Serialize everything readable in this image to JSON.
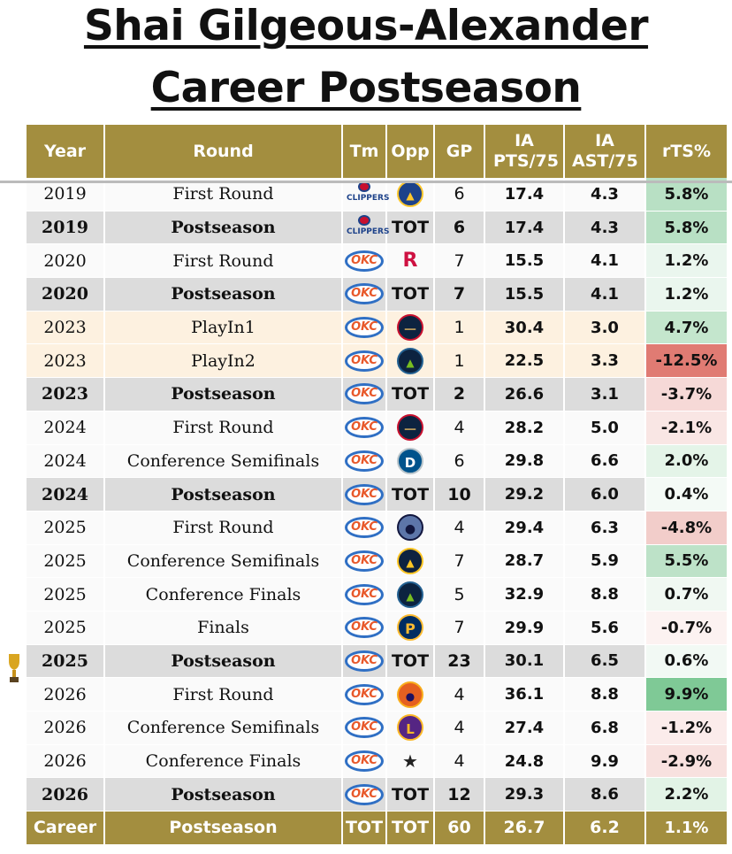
{
  "title": {
    "line1": "Shai Gilgeous-Alexander",
    "line2": "Career Postseason"
  },
  "columns": [
    "Year",
    "Round",
    "Tm",
    "Opp",
    "GP",
    "IA PTS/75",
    "IA AST/75",
    "rTS%"
  ],
  "colors": {
    "header": "#a38e3f",
    "bold_row": "#dcdcdc",
    "playin_row": "#fdf1e0"
  },
  "rows": [
    {
      "year": "2019",
      "round": "First Round",
      "tm": "clippers-logo",
      "opp": "warriors-logo",
      "gp": "6",
      "pts": "17.4",
      "ast": "4.3",
      "rts": "5.8%",
      "rts_color": "#b8e0c4",
      "style": "plain"
    },
    {
      "year": "2019",
      "round": "Postseason",
      "tm": "clippers-logo",
      "opp": "TOT",
      "gp": "6",
      "pts": "17.4",
      "ast": "4.3",
      "rts": "5.8%",
      "rts_color": "#b8e0c4",
      "style": "bold"
    },
    {
      "year": "2020",
      "round": "First Round",
      "tm": "thunder-logo",
      "opp": "rockets-logo",
      "gp": "7",
      "pts": "15.5",
      "ast": "4.1",
      "rts": "1.2%",
      "rts_color": "#eaf6ee",
      "style": "plain"
    },
    {
      "year": "2020",
      "round": "Postseason",
      "tm": "thunder-logo",
      "opp": "TOT",
      "gp": "7",
      "pts": "15.5",
      "ast": "4.1",
      "rts": "1.2%",
      "rts_color": "#eaf6ee",
      "style": "bold"
    },
    {
      "year": "2023",
      "round": "PlayIn1",
      "tm": "thunder-logo",
      "opp": "pelicans-logo",
      "gp": "1",
      "pts": "30.4",
      "ast": "3.0",
      "rts": "4.7%",
      "rts_color": "#c4e6cd",
      "style": "play"
    },
    {
      "year": "2023",
      "round": "PlayIn2",
      "tm": "thunder-logo",
      "opp": "timberwolves-logo",
      "gp": "1",
      "pts": "22.5",
      "ast": "3.3",
      "rts": "-12.5%",
      "rts_color": "#e07b73",
      "style": "play"
    },
    {
      "year": "2023",
      "round": "Postseason",
      "tm": "thunder-logo",
      "opp": "TOT",
      "gp": "2",
      "pts": "26.6",
      "ast": "3.1",
      "rts": "-3.7%",
      "rts_color": "#f6d9d7",
      "style": "bold"
    },
    {
      "year": "2024",
      "round": "First Round",
      "tm": "thunder-logo",
      "opp": "pelicans-logo",
      "gp": "4",
      "pts": "28.2",
      "ast": "5.0",
      "rts": "-2.1%",
      "rts_color": "#f9e6e4",
      "style": "plain"
    },
    {
      "year": "2024",
      "round": "Conference Semifinals",
      "tm": "thunder-logo",
      "opp": "mavericks-logo",
      "gp": "6",
      "pts": "29.8",
      "ast": "6.6",
      "rts": "2.0%",
      "rts_color": "#e4f4e8",
      "style": "plain"
    },
    {
      "year": "2024",
      "round": "Postseason",
      "tm": "thunder-logo",
      "opp": "TOT",
      "gp": "10",
      "pts": "29.2",
      "ast": "6.0",
      "rts": "0.4%",
      "rts_color": "#f4faf6",
      "style": "bold"
    },
    {
      "year": "2025",
      "round": "First Round",
      "tm": "thunder-logo",
      "opp": "grizzlies-logo",
      "gp": "4",
      "pts": "29.4",
      "ast": "6.3",
      "rts": "-4.8%",
      "rts_color": "#f2cdca",
      "style": "plain"
    },
    {
      "year": "2025",
      "round": "Conference Semifinals",
      "tm": "thunder-logo",
      "opp": "nuggets-logo",
      "gp": "7",
      "pts": "28.7",
      "ast": "5.9",
      "rts": "5.5%",
      "rts_color": "#bde2c8",
      "style": "plain"
    },
    {
      "year": "2025",
      "round": "Conference Finals",
      "tm": "thunder-logo",
      "opp": "timberwolves-logo",
      "gp": "5",
      "pts": "32.9",
      "ast": "8.8",
      "rts": "0.7%",
      "rts_color": "#f0f8f2",
      "style": "plain"
    },
    {
      "year": "2025",
      "round": "Finals",
      "tm": "thunder-logo",
      "opp": "pacers-logo",
      "gp": "7",
      "pts": "29.9",
      "ast": "5.6",
      "rts": "-0.7%",
      "rts_color": "#fcf2f1",
      "style": "plain"
    },
    {
      "year": "2025",
      "round": "Postseason",
      "tm": "thunder-logo",
      "opp": "TOT",
      "gp": "23",
      "pts": "30.1",
      "ast": "6.5",
      "rts": "0.6%",
      "rts_color": "#f2f9f4",
      "style": "bold"
    },
    {
      "year": "2026",
      "round": "First Round",
      "tm": "thunder-logo",
      "opp": "suns-logo",
      "gp": "4",
      "pts": "36.1",
      "ast": "8.8",
      "rts": "9.9%",
      "rts_color": "#7fc996",
      "style": "plain"
    },
    {
      "year": "2026",
      "round": "Conference Semifinals",
      "tm": "thunder-logo",
      "opp": "lakers-logo",
      "gp": "4",
      "pts": "27.4",
      "ast": "6.8",
      "rts": "-1.2%",
      "rts_color": "#fbeceb",
      "style": "plain"
    },
    {
      "year": "2026",
      "round": "Conference Finals",
      "tm": "thunder-logo",
      "opp": "spurs-logo",
      "gp": "4",
      "pts": "24.8",
      "ast": "9.9",
      "rts": "-2.9%",
      "rts_color": "#f8e1df",
      "style": "plain"
    },
    {
      "year": "2026",
      "round": "Postseason",
      "tm": "thunder-logo",
      "opp": "TOT",
      "gp": "12",
      "pts": "29.3",
      "ast": "8.6",
      "rts": "2.2%",
      "rts_color": "#e2f3e6",
      "style": "bold"
    }
  ],
  "career": {
    "year": "Career",
    "round": "Postseason",
    "tm": "TOT",
    "opp": "TOT",
    "gp": "60",
    "pts": "26.7",
    "ast": "6.2",
    "rts": "1.1%"
  },
  "icons": {
    "trophy_row_year": "2025",
    "trophy": "trophy-icon"
  }
}
